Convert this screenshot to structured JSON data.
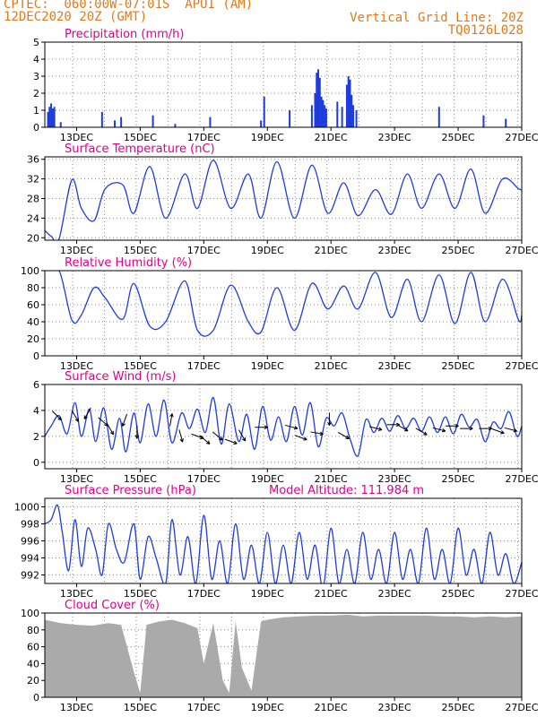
{
  "header": {
    "line1_left": "CPTEC:  060:00W-07:01S  APUI (AM)",
    "line2_left": "12DEC2020 20Z (GMT)",
    "line1_right": "Vertical Grid Line: 20Z",
    "line2_right": "TQ0126L028"
  },
  "colors": {
    "header": "#e07a1a",
    "panel_title": "#e0008c",
    "series": "#1e3cdc",
    "cloud": "#aaaaaa"
  },
  "x_axis": {
    "tick_labels": [
      "13DEC",
      "15DEC",
      "17DEC",
      "19DEC",
      "21DEC",
      "23DEC",
      "25DEC",
      "27DEC"
    ]
  },
  "chart_data": [
    {
      "type": "bar",
      "title": "Precipitation (mm/h)",
      "x": [
        12.1,
        12.15,
        12.2,
        12.25,
        12.3,
        12.5,
        13.8,
        14.2,
        14.4,
        15.4,
        16.1,
        17.2,
        18.8,
        18.9,
        19.7,
        20.4,
        20.5,
        20.55,
        20.6,
        20.65,
        20.7,
        20.75,
        20.8,
        20.85,
        21.2,
        21.35,
        21.5,
        21.55,
        21.6,
        21.65,
        21.7,
        21.8,
        24.4,
        25.8,
        26.5
      ],
      "values": [
        0.9,
        1.2,
        1.4,
        1.1,
        1.2,
        0.3,
        0.9,
        0.4,
        0.6,
        0.7,
        0.2,
        0.6,
        0.4,
        1.8,
        1.0,
        1.3,
        2.0,
        3.2,
        3.4,
        2.9,
        1.8,
        1.6,
        1.3,
        1.1,
        1.5,
        1.2,
        2.5,
        3.0,
        2.8,
        1.9,
        1.3,
        1.0,
        1.2,
        0.7,
        0.5
      ],
      "xlim": [
        12.0,
        27.0
      ],
      "ylim": [
        0,
        5
      ],
      "yticks": [
        "0",
        "1",
        "2",
        "3",
        "4",
        "5"
      ]
    },
    {
      "type": "line",
      "title": "Surface Temperature (nC)",
      "x": [
        12.0,
        12.2,
        12.45,
        12.85,
        13.15,
        13.55,
        13.9,
        14.45,
        14.8,
        15.3,
        15.8,
        16.4,
        16.8,
        17.3,
        17.85,
        18.4,
        18.8,
        19.3,
        19.85,
        20.4,
        20.9,
        21.4,
        21.85,
        22.4,
        22.9,
        23.4,
        23.85,
        24.4,
        24.9,
        25.4,
        25.85,
        26.4,
        26.9,
        27.0
      ],
      "values": [
        21.5,
        20.3,
        19.8,
        31.8,
        26.0,
        23.5,
        30.0,
        30.8,
        25.0,
        34.5,
        24.0,
        33.0,
        26.0,
        35.8,
        26.0,
        33.0,
        24.0,
        35.5,
        24.0,
        34.8,
        25.0,
        31.2,
        24.5,
        29.8,
        24.8,
        33.0,
        26.0,
        33.0,
        26.0,
        34.0,
        25.0,
        32.0,
        30.0,
        29.8
      ],
      "xlim": [
        12.0,
        27.0
      ],
      "ylim": [
        19.5,
        36.5
      ],
      "yticks": [
        "20",
        "24",
        "28",
        "32",
        "36"
      ]
    },
    {
      "type": "line",
      "title": "Relative Humidity (%)",
      "x": [
        12.0,
        12.45,
        12.85,
        13.15,
        13.55,
        13.9,
        14.45,
        14.8,
        15.3,
        15.8,
        16.4,
        16.8,
        17.3,
        17.85,
        18.4,
        18.8,
        19.3,
        19.85,
        20.4,
        20.9,
        21.4,
        21.85,
        22.4,
        22.9,
        23.4,
        23.85,
        24.4,
        24.9,
        25.4,
        25.85,
        26.4,
        26.9,
        27.0
      ],
      "values": [
        100,
        100,
        42,
        48,
        80,
        68,
        43,
        85,
        35,
        40,
        88,
        30,
        30,
        83,
        40,
        28,
        80,
        30,
        85,
        55,
        82,
        55,
        98,
        45,
        90,
        40,
        95,
        38,
        98,
        40,
        90,
        42,
        48
      ],
      "xlim": [
        12.0,
        27.0
      ],
      "ylim": [
        0,
        100
      ],
      "yticks": [
        "0",
        "20",
        "40",
        "60",
        "80",
        "100"
      ]
    },
    {
      "type": "line",
      "title": "Surface Wind (m/s)",
      "x": [
        12.0,
        12.2,
        12.45,
        12.7,
        12.95,
        13.15,
        13.4,
        13.6,
        13.85,
        14.1,
        14.35,
        14.55,
        14.8,
        15.0,
        15.25,
        15.5,
        15.75,
        16.0,
        16.3,
        16.55,
        16.8,
        17.05,
        17.3,
        17.55,
        17.8,
        18.1,
        18.35,
        18.6,
        18.85,
        19.1,
        19.35,
        19.6,
        19.85,
        20.1,
        20.35,
        20.6,
        20.85,
        21.1,
        21.35,
        21.6,
        21.85,
        22.1,
        22.35,
        22.6,
        22.85,
        23.1,
        23.35,
        23.6,
        23.85,
        24.1,
        24.35,
        24.6,
        24.85,
        25.1,
        25.35,
        25.6,
        25.85,
        26.1,
        26.35,
        26.6,
        26.85,
        27.0
      ],
      "values": [
        2.0,
        2.8,
        3.6,
        2.2,
        4.6,
        2.0,
        4.1,
        1.6,
        4.2,
        1.0,
        3.4,
        0.8,
        3.8,
        1.5,
        4.5,
        2.0,
        4.8,
        1.5,
        3.8,
        2.6,
        4.1,
        2.3,
        5.0,
        1.4,
        4.5,
        1.6,
        3.7,
        1.0,
        4.3,
        1.7,
        3.5,
        1.6,
        4.3,
        2.1,
        4.6,
        1.2,
        3.4,
        2.8,
        3.8,
        1.8,
        0.5,
        3.3,
        2.3,
        3.4,
        2.4,
        3.6,
        2.6,
        3.4,
        2.4,
        3.5,
        2.3,
        3.5,
        2.2,
        3.7,
        2.7,
        3.3,
        1.6,
        3.1,
        2.6,
        3.9,
        2.0,
        2.8
      ],
      "vectors": [
        [
          12.3,
          3.8,
          -45
        ],
        [
          12.9,
          3.8,
          -60
        ],
        [
          13.4,
          4.0,
          -120
        ],
        [
          13.75,
          3.3,
          -40
        ],
        [
          14.0,
          2.8,
          -60
        ],
        [
          14.55,
          3.5,
          -110
        ],
        [
          14.9,
          2.6,
          -90
        ],
        [
          15.95,
          3.0,
          80
        ],
        [
          16.25,
          2.3,
          -75
        ],
        [
          16.7,
          2.1,
          -20
        ],
        [
          16.95,
          1.9,
          -40
        ],
        [
          17.35,
          2.2,
          -40
        ],
        [
          17.75,
          1.7,
          -20
        ],
        [
          18.15,
          2.3,
          -60
        ],
        [
          18.7,
          2.7,
          0
        ],
        [
          19.65,
          2.8,
          -15
        ],
        [
          19.95,
          2.0,
          -20
        ],
        [
          20.45,
          2.3,
          -10
        ],
        [
          20.95,
          3.6,
          -90
        ],
        [
          21.3,
          2.2,
          -30
        ],
        [
          22.3,
          2.7,
          -15
        ],
        [
          22.85,
          2.9,
          0
        ],
        [
          23.15,
          2.8,
          -30
        ],
        [
          23.75,
          2.5,
          -30
        ],
        [
          24.3,
          2.6,
          -15
        ],
        [
          24.7,
          2.8,
          0
        ],
        [
          25.15,
          2.6,
          0
        ],
        [
          25.75,
          2.6,
          0
        ],
        [
          26.15,
          2.5,
          -20
        ],
        [
          26.55,
          2.6,
          -15
        ]
      ],
      "xlim": [
        12.0,
        27.0
      ],
      "ylim": [
        -0.5,
        6
      ],
      "yticks": [
        "0",
        "2",
        "4",
        "6"
      ]
    },
    {
      "type": "line",
      "title": "Surface Pressure (hPa)",
      "annotation": "Model Altitude: 111.984  m",
      "x": [
        12.0,
        12.2,
        12.4,
        12.55,
        12.75,
        12.95,
        13.15,
        13.35,
        13.6,
        13.8,
        14.0,
        14.25,
        14.5,
        14.8,
        15.0,
        15.25,
        15.5,
        15.8,
        16.0,
        16.25,
        16.5,
        16.75,
        17.0,
        17.25,
        17.5,
        17.75,
        18.0,
        18.25,
        18.5,
        18.75,
        19.0,
        19.25,
        19.5,
        19.75,
        20.0,
        20.25,
        20.5,
        20.75,
        21.0,
        21.25,
        21.5,
        21.75,
        22.0,
        22.25,
        22.5,
        22.75,
        23.0,
        23.25,
        23.5,
        23.75,
        24.0,
        24.25,
        24.5,
        24.75,
        25.0,
        25.25,
        25.5,
        25.75,
        26.0,
        26.25,
        26.5,
        26.75,
        27.0
      ],
      "values": [
        998.0,
        998.5,
        1000.2,
        997.0,
        992.5,
        998.5,
        993.0,
        997.5,
        995.0,
        992.0,
        998.0,
        995.0,
        993.5,
        998.0,
        991.5,
        996.5,
        994.0,
        991.0,
        998.5,
        992.0,
        996.5,
        991.0,
        999.0,
        991.5,
        996.0,
        991.0,
        998.0,
        991.5,
        995.5,
        991.0,
        997.0,
        991.0,
        995.5,
        991.0,
        997.0,
        991.5,
        995.5,
        990.5,
        997.5,
        991.0,
        995.0,
        991.0,
        997.0,
        991.5,
        995.0,
        991.0,
        997.0,
        991.5,
        995.0,
        991.0,
        997.5,
        991.5,
        995.0,
        991.0,
        997.5,
        992.0,
        995.0,
        991.0,
        997.0,
        992.0,
        994.5,
        991.0,
        993.5
      ],
      "xlim": [
        12.0,
        27.0
      ],
      "ylim": [
        991,
        1001
      ],
      "yticks": [
        "992",
        "994",
        "996",
        "998",
        "1000"
      ]
    },
    {
      "type": "area",
      "title": "Cloud Cover (%)",
      "x": [
        12.0,
        12.5,
        13.0,
        13.5,
        14.0,
        14.4,
        14.8,
        15.0,
        15.2,
        15.6,
        16.0,
        16.4,
        16.8,
        17.0,
        17.3,
        17.6,
        17.8,
        18.0,
        18.2,
        18.5,
        18.8,
        19.0,
        19.5,
        20.0,
        20.5,
        21.0,
        21.5,
        22.0,
        22.5,
        23.0,
        23.5,
        24.0,
        24.5,
        25.0,
        25.5,
        26.0,
        26.5,
        27.0
      ],
      "values": [
        92,
        88,
        86,
        85,
        88,
        86,
        30,
        5,
        86,
        90,
        92,
        88,
        82,
        40,
        88,
        20,
        5,
        90,
        35,
        8,
        90,
        92,
        95,
        96,
        97,
        97,
        98,
        96,
        97,
        97,
        97,
        97,
        96,
        96,
        95,
        96,
        95,
        96
      ],
      "xlim": [
        12.0,
        27.0
      ],
      "ylim": [
        0,
        100
      ],
      "yticks": [
        "0",
        "20",
        "40",
        "60",
        "80",
        "100"
      ]
    }
  ]
}
